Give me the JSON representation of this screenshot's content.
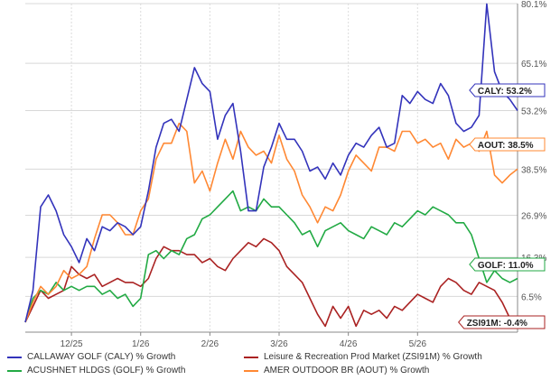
{
  "chart_data": {
    "type": "line",
    "title": "",
    "xlabel": "",
    "ylabel": "",
    "ylim": [
      -2.5,
      80.1
    ],
    "ytick_labels": [
      "80.1%",
      "65.1%",
      "53.2%",
      "38.5%",
      "26.9%",
      "16.3%",
      "6.5%"
    ],
    "ytick_values": [
      80.1,
      65.1,
      53.2,
      38.5,
      26.9,
      16.3,
      6.5
    ],
    "xtick_labels": [
      "12/25",
      "1/26",
      "2/26",
      "3/26",
      "4/26",
      "5/26"
    ],
    "xtick_values": [
      6,
      15,
      24,
      33,
      42,
      51
    ],
    "xlim": [
      0,
      61
    ],
    "grid": true,
    "legend_position": "bottom",
    "series": [
      {
        "name": "CALLAWAY GOLF (CALY) % Growth",
        "color": "#3333bb",
        "end_label": "CALY: 53.2%",
        "points": [
          [
            0,
            0
          ],
          [
            1,
            8
          ],
          [
            2,
            29
          ],
          [
            3,
            32
          ],
          [
            4,
            28
          ],
          [
            5,
            22
          ],
          [
            6,
            19
          ],
          [
            7,
            15
          ],
          [
            8,
            21
          ],
          [
            9,
            18
          ],
          [
            10,
            24
          ],
          [
            11,
            23
          ],
          [
            12,
            25
          ],
          [
            13,
            24
          ],
          [
            14,
            22
          ],
          [
            15,
            24
          ],
          [
            16,
            33
          ],
          [
            17,
            44
          ],
          [
            18,
            50
          ],
          [
            19,
            51
          ],
          [
            20,
            48
          ],
          [
            21,
            56
          ],
          [
            22,
            64
          ],
          [
            23,
            60
          ],
          [
            24,
            58
          ],
          [
            25,
            46
          ],
          [
            26,
            52
          ],
          [
            27,
            55
          ],
          [
            28,
            43
          ],
          [
            29,
            28
          ],
          [
            30,
            28
          ],
          [
            31,
            39
          ],
          [
            32,
            44
          ],
          [
            33,
            50
          ],
          [
            34,
            46
          ],
          [
            35,
            46
          ],
          [
            36,
            43
          ],
          [
            37,
            38
          ],
          [
            38,
            39
          ],
          [
            39,
            36
          ],
          [
            40,
            40
          ],
          [
            41,
            37
          ],
          [
            42,
            42
          ],
          [
            43,
            45
          ],
          [
            44,
            44
          ],
          [
            45,
            47
          ],
          [
            46,
            49
          ],
          [
            47,
            44
          ],
          [
            48,
            45
          ],
          [
            49,
            57
          ],
          [
            50,
            55
          ],
          [
            51,
            58
          ],
          [
            52,
            56
          ],
          [
            53,
            55
          ],
          [
            54,
            60
          ],
          [
            55,
            57
          ],
          [
            56,
            50
          ],
          [
            57,
            48
          ],
          [
            58,
            49
          ],
          [
            59,
            52
          ],
          [
            60,
            80
          ],
          [
            61,
            63
          ],
          [
            62,
            58
          ],
          [
            63,
            56
          ],
          [
            64,
            53.2
          ]
        ]
      },
      {
        "name": "Leisure & Recreation Prod Market (ZSI91M) % Growth",
        "color": "#aa2222",
        "end_label": "ZSI91M: -0.4%",
        "points": [
          [
            0,
            0
          ],
          [
            1,
            4
          ],
          [
            2,
            8
          ],
          [
            3,
            6
          ],
          [
            4,
            7
          ],
          [
            5,
            8
          ],
          [
            6,
            14
          ],
          [
            7,
            12
          ],
          [
            8,
            11
          ],
          [
            9,
            12
          ],
          [
            10,
            9
          ],
          [
            11,
            10
          ],
          [
            12,
            11
          ],
          [
            13,
            10
          ],
          [
            14,
            10
          ],
          [
            15,
            9
          ],
          [
            16,
            11
          ],
          [
            17,
            16
          ],
          [
            18,
            19
          ],
          [
            19,
            18
          ],
          [
            20,
            18
          ],
          [
            21,
            17
          ],
          [
            22,
            17
          ],
          [
            23,
            15
          ],
          [
            24,
            16
          ],
          [
            25,
            14
          ],
          [
            26,
            13
          ],
          [
            27,
            16
          ],
          [
            28,
            18
          ],
          [
            29,
            20
          ],
          [
            30,
            19
          ],
          [
            31,
            21
          ],
          [
            32,
            20
          ],
          [
            33,
            18
          ],
          [
            34,
            14
          ],
          [
            35,
            12
          ],
          [
            36,
            10
          ],
          [
            37,
            6
          ],
          [
            38,
            2
          ],
          [
            39,
            -1
          ],
          [
            40,
            4
          ],
          [
            41,
            1
          ],
          [
            42,
            4
          ],
          [
            43,
            -1
          ],
          [
            44,
            3
          ],
          [
            45,
            2
          ],
          [
            46,
            3
          ],
          [
            47,
            1
          ],
          [
            48,
            4
          ],
          [
            49,
            3
          ],
          [
            50,
            5
          ],
          [
            51,
            7
          ],
          [
            52,
            6
          ],
          [
            53,
            5
          ],
          [
            54,
            9
          ],
          [
            55,
            11
          ],
          [
            56,
            10
          ],
          [
            57,
            8
          ],
          [
            58,
            7
          ],
          [
            59,
            10
          ],
          [
            60,
            9
          ],
          [
            61,
            8
          ],
          [
            62,
            5
          ],
          [
            63,
            1
          ],
          [
            64,
            -0.4
          ]
        ]
      },
      {
        "name": "ACUSHNET HLDGS (GOLF) % Growth",
        "color": "#22aa44",
        "end_label": "GOLF: 11.0%",
        "points": [
          [
            0,
            0
          ],
          [
            1,
            6
          ],
          [
            2,
            8
          ],
          [
            3,
            7
          ],
          [
            4,
            10
          ],
          [
            5,
            8
          ],
          [
            6,
            9
          ],
          [
            7,
            8
          ],
          [
            8,
            9
          ],
          [
            9,
            9
          ],
          [
            10,
            7
          ],
          [
            11,
            8
          ],
          [
            12,
            6
          ],
          [
            13,
            7
          ],
          [
            14,
            4
          ],
          [
            15,
            6
          ],
          [
            16,
            17
          ],
          [
            17,
            18
          ],
          [
            18,
            16
          ],
          [
            19,
            18
          ],
          [
            20,
            17
          ],
          [
            21,
            21
          ],
          [
            22,
            22
          ],
          [
            23,
            26
          ],
          [
            24,
            27
          ],
          [
            25,
            29
          ],
          [
            26,
            31
          ],
          [
            27,
            33
          ],
          [
            28,
            28
          ],
          [
            29,
            29
          ],
          [
            30,
            28
          ],
          [
            31,
            31
          ],
          [
            32,
            29
          ],
          [
            33,
            29
          ],
          [
            34,
            27
          ],
          [
            35,
            25
          ],
          [
            36,
            22
          ],
          [
            37,
            23
          ],
          [
            38,
            19
          ],
          [
            39,
            23
          ],
          [
            40,
            24
          ],
          [
            41,
            25
          ],
          [
            42,
            23
          ],
          [
            43,
            22
          ],
          [
            44,
            21
          ],
          [
            45,
            24
          ],
          [
            46,
            23
          ],
          [
            47,
            22
          ],
          [
            48,
            25
          ],
          [
            49,
            24
          ],
          [
            50,
            26
          ],
          [
            51,
            28
          ],
          [
            52,
            27
          ],
          [
            53,
            29
          ],
          [
            54,
            28
          ],
          [
            55,
            27
          ],
          [
            56,
            25
          ],
          [
            57,
            25
          ],
          [
            58,
            22
          ],
          [
            59,
            16
          ],
          [
            60,
            10
          ],
          [
            61,
            13
          ],
          [
            62,
            11
          ],
          [
            63,
            10
          ],
          [
            64,
            11
          ]
        ]
      },
      {
        "name": "AMER OUTDOOR BR (AOUT) % Growth",
        "color": "#ff8833",
        "end_label": "AOUT: 38.5%",
        "points": [
          [
            0,
            0
          ],
          [
            1,
            5
          ],
          [
            2,
            9
          ],
          [
            3,
            7
          ],
          [
            4,
            9
          ],
          [
            5,
            13
          ],
          [
            6,
            11
          ],
          [
            7,
            12
          ],
          [
            8,
            14
          ],
          [
            9,
            21
          ],
          [
            10,
            27
          ],
          [
            11,
            27
          ],
          [
            12,
            25
          ],
          [
            13,
            22
          ],
          [
            14,
            22
          ],
          [
            15,
            28
          ],
          [
            16,
            31
          ],
          [
            17,
            41
          ],
          [
            18,
            45
          ],
          [
            19,
            45
          ],
          [
            20,
            50
          ],
          [
            21,
            48
          ],
          [
            22,
            35
          ],
          [
            23,
            38
          ],
          [
            24,
            33
          ],
          [
            25,
            40
          ],
          [
            26,
            46
          ],
          [
            27,
            41
          ],
          [
            28,
            48
          ],
          [
            29,
            44
          ],
          [
            30,
            42
          ],
          [
            31,
            43
          ],
          [
            32,
            40
          ],
          [
            33,
            47
          ],
          [
            34,
            41
          ],
          [
            35,
            38
          ],
          [
            36,
            32
          ],
          [
            37,
            29
          ],
          [
            38,
            25
          ],
          [
            39,
            29
          ],
          [
            40,
            28
          ],
          [
            41,
            32
          ],
          [
            42,
            38
          ],
          [
            43,
            42
          ],
          [
            44,
            40
          ],
          [
            45,
            38
          ],
          [
            46,
            44
          ],
          [
            47,
            44
          ],
          [
            48,
            43
          ],
          [
            49,
            48
          ],
          [
            50,
            48
          ],
          [
            51,
            45
          ],
          [
            52,
            46
          ],
          [
            53,
            44
          ],
          [
            54,
            45
          ],
          [
            55,
            41
          ],
          [
            56,
            46
          ],
          [
            57,
            44
          ],
          [
            58,
            45
          ],
          [
            59,
            43
          ],
          [
            60,
            48
          ],
          [
            61,
            37
          ],
          [
            62,
            35
          ],
          [
            63,
            37
          ],
          [
            64,
            38.5
          ]
        ]
      }
    ]
  }
}
